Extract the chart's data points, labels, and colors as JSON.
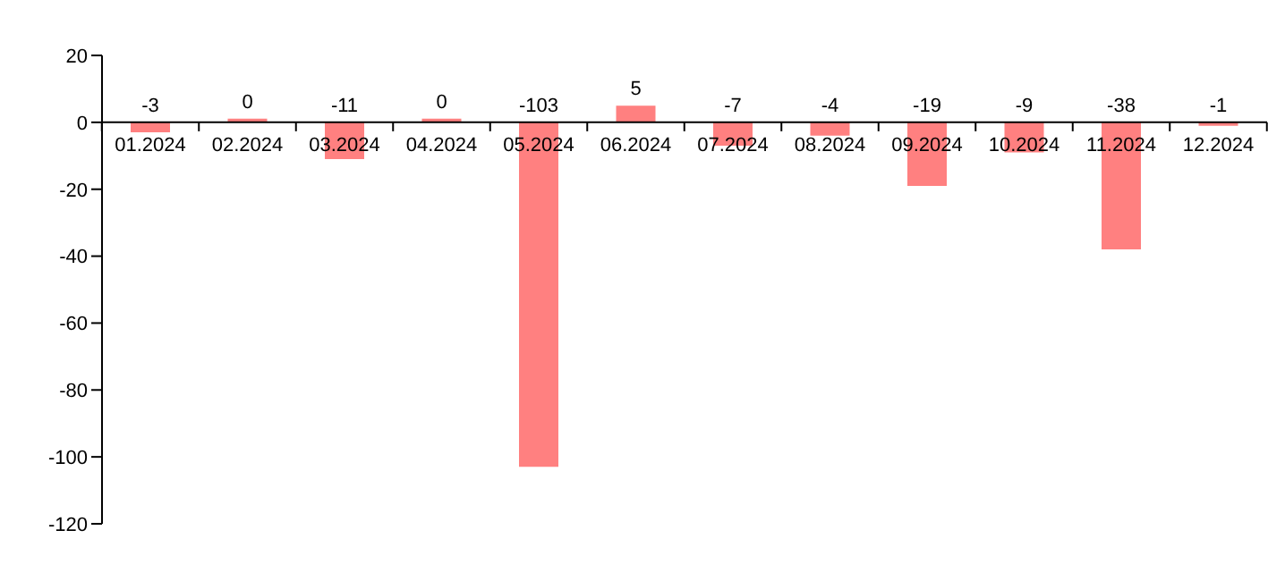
{
  "chart_data": {
    "type": "bar",
    "categories": [
      "01.2024",
      "02.2024",
      "03.2024",
      "04.2024",
      "05.2024",
      "06.2024",
      "07.2024",
      "08.2024",
      "09.2024",
      "10.2024",
      "11.2024",
      "12.2024"
    ],
    "values": [
      -3,
      0,
      -11,
      0,
      -103,
      5,
      -7,
      -4,
      -19,
      -9,
      -38,
      -1
    ],
    "color": "#ff8080",
    "ylim": [
      -120,
      20
    ],
    "yticks": [
      20,
      0,
      -20,
      -40,
      -60,
      -80,
      -100,
      -120
    ],
    "grid": false,
    "data_labels": true
  }
}
